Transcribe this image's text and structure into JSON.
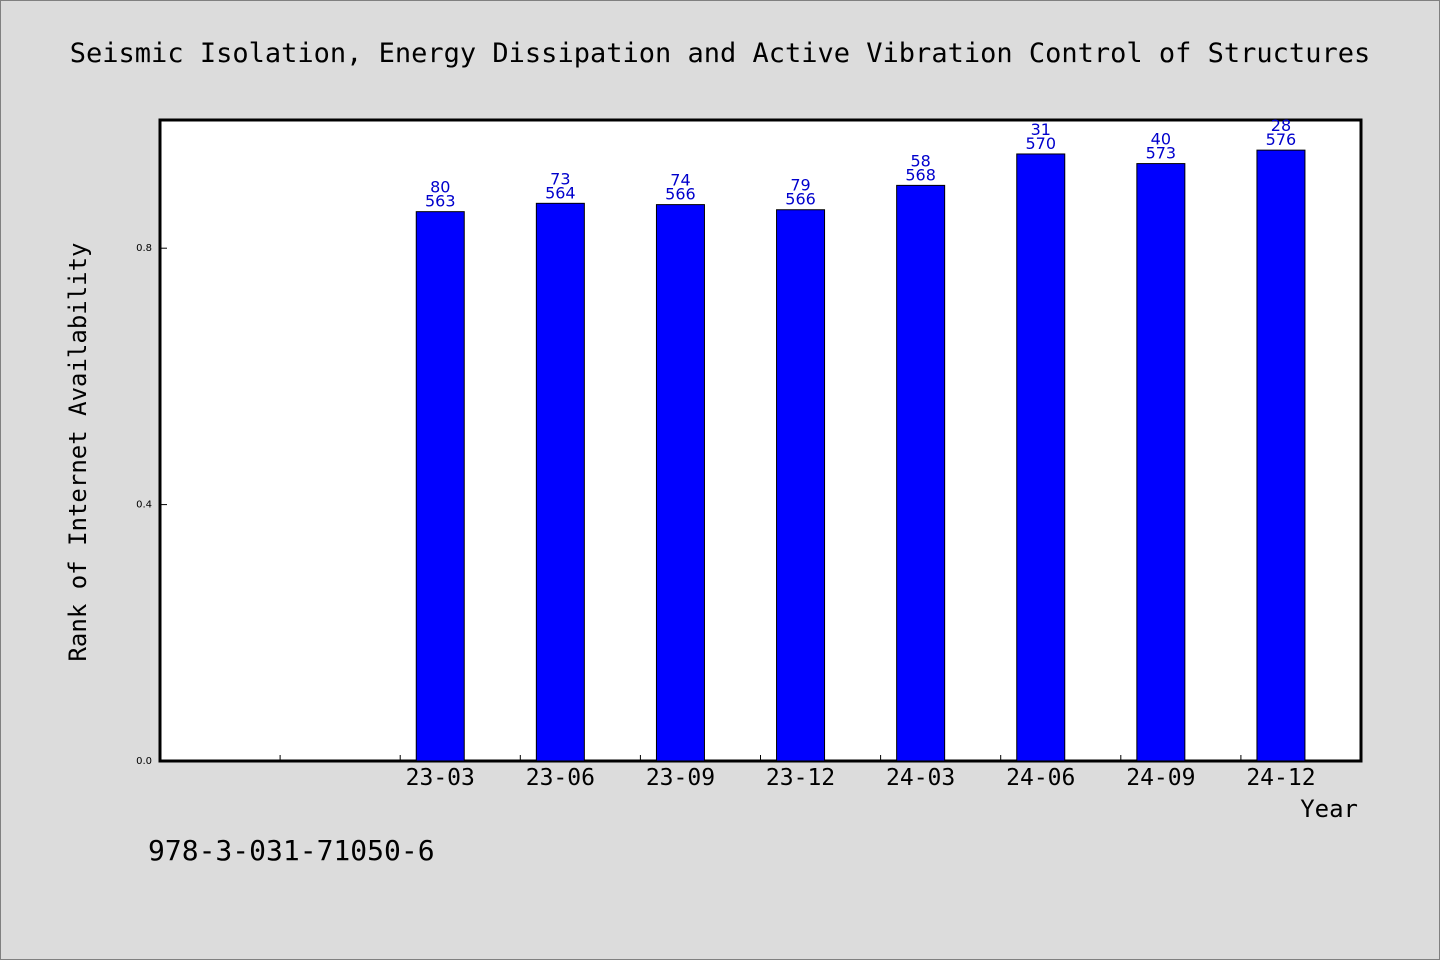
{
  "chart_data": {
    "type": "bar",
    "title": "Seismic Isolation, Energy Dissipation and Active Vibration Control of Structures",
    "xlabel": "Year",
    "ylabel": "Rank of Internet Availability",
    "ylim": [
      0.0,
      1.0
    ],
    "yticks": [
      "0.0",
      "0.4",
      "0.8"
    ],
    "ytick_values": [
      0.0,
      0.4,
      0.8
    ],
    "categories": [
      "23-03",
      "23-06",
      "23-09",
      "23-12",
      "24-03",
      "24-06",
      "24-09",
      "24-12"
    ],
    "values": [
      0.857,
      0.87,
      0.868,
      0.86,
      0.898,
      0.947,
      0.932,
      0.953
    ],
    "label_top": [
      "80",
      "73",
      "74",
      "79",
      "58",
      "31",
      "40",
      "28"
    ],
    "label_bottom": [
      "563",
      "564",
      "566",
      "566",
      "568",
      "570",
      "573",
      "576"
    ],
    "bar_color": "#0000ff",
    "label_color": "#0000cc",
    "grid": false,
    "legend": "none"
  },
  "footer": {
    "isbn": "978-3-031-71050-6"
  }
}
